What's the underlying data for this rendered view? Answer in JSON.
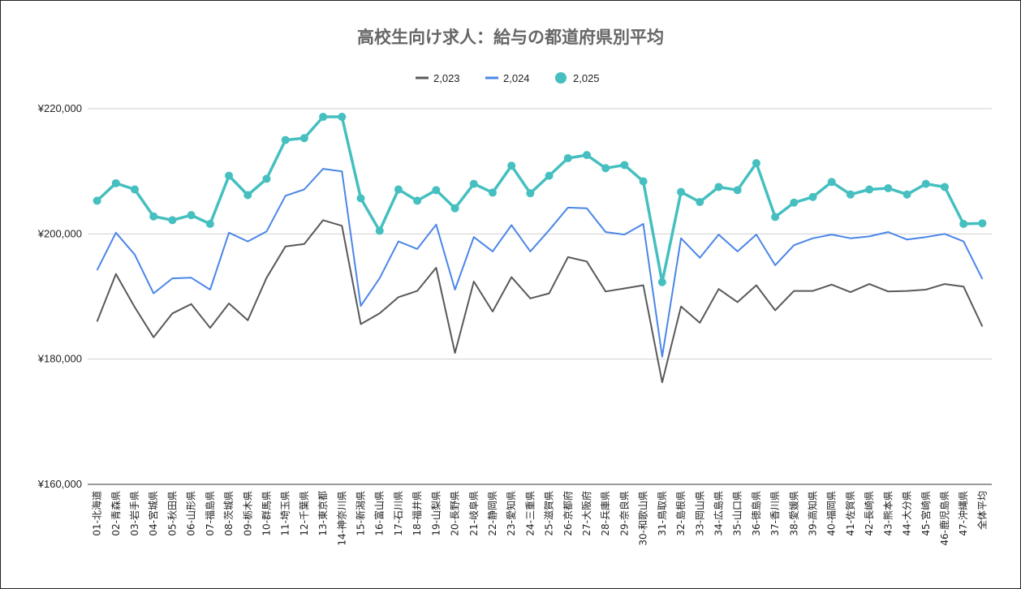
{
  "chart_data": {
    "type": "line",
    "title": "高校生向け求人：給与の都道府県別平均",
    "xlabel": "",
    "ylabel": "",
    "ylim": [
      160000,
      220000
    ],
    "yticks": [
      160000,
      180000,
      200000,
      220000
    ],
    "ytick_labels": [
      "¥160,000",
      "¥180,000",
      "¥200,000",
      "¥220,000"
    ],
    "grid": true,
    "legend_position": "top",
    "categories": [
      "01-北海道",
      "02-青森県",
      "03-岩手県",
      "04-宮城県",
      "05-秋田県",
      "06-山形県",
      "07-福島県",
      "08-茨城県",
      "09-栃木県",
      "10-群馬県",
      "11-埼玉県",
      "12-千葉県",
      "13-東京都",
      "14-神奈川県",
      "15-新潟県",
      "16-富山県",
      "17-石川県",
      "18-福井県",
      "19-山梨県",
      "20-長野県",
      "21-岐阜県",
      "22-静岡県",
      "23-愛知県",
      "24-三重県",
      "25-滋賀県",
      "26-京都府",
      "27-大阪府",
      "28-兵庫県",
      "29-奈良県",
      "30-和歌山県",
      "31-鳥取県",
      "32-島根県",
      "33-岡山県",
      "34-広島県",
      "35-山口県",
      "36-徳島県",
      "37-香川県",
      "38-愛媛県",
      "39-高知県",
      "40-福岡県",
      "41-佐賀県",
      "42-長崎県",
      "43-熊本県",
      "44-大分県",
      "45-宮崎県",
      "46-鹿児島県",
      "47-沖縄県",
      "全体平均"
    ],
    "series": [
      {
        "name": "2,023",
        "color": "#595959",
        "marker": false,
        "values": [
          186000,
          193600,
          188300,
          183500,
          187300,
          188800,
          185000,
          188900,
          186200,
          193000,
          198000,
          198400,
          202200,
          201300,
          185600,
          187300,
          189900,
          190900,
          194600,
          181000,
          192400,
          187600,
          193100,
          189700,
          190500,
          196300,
          195600,
          190800,
          191300,
          191800,
          176300,
          188400,
          185800,
          191200,
          189100,
          191800,
          187800,
          190900,
          190900,
          191900,
          190700,
          192000,
          190800,
          190900,
          191100,
          192000,
          191600,
          185200
        ]
      },
      {
        "name": "2,024",
        "color": "#4a86e8",
        "marker": false,
        "values": [
          194200,
          200200,
          196700,
          190500,
          192900,
          193000,
          191100,
          200200,
          198800,
          200400,
          206100,
          207100,
          210400,
          210000,
          188500,
          192900,
          198800,
          197600,
          201500,
          191100,
          199500,
          197200,
          201400,
          197200,
          200600,
          204200,
          204100,
          200300,
          199900,
          201600,
          180400,
          199300,
          196200,
          199900,
          197200,
          199900,
          195000,
          198200,
          199300,
          199900,
          199300,
          199600,
          200300,
          199100,
          199500,
          200000,
          198800,
          192800
        ]
      },
      {
        "name": "2,025",
        "color": "#45bfbf",
        "marker": true,
        "values": [
          205300,
          208100,
          207100,
          202800,
          202200,
          203000,
          201600,
          209300,
          206200,
          208800,
          215000,
          215300,
          218700,
          218700,
          205700,
          200500,
          207100,
          205300,
          207000,
          204100,
          208000,
          206600,
          210900,
          206500,
          209300,
          212100,
          212600,
          210500,
          211000,
          208400,
          192300,
          206700,
          205100,
          207500,
          207000,
          211300,
          202700,
          205000,
          205900,
          208300,
          206300,
          207100,
          207300,
          206300,
          208000,
          207500,
          201600,
          201700
        ]
      }
    ]
  }
}
